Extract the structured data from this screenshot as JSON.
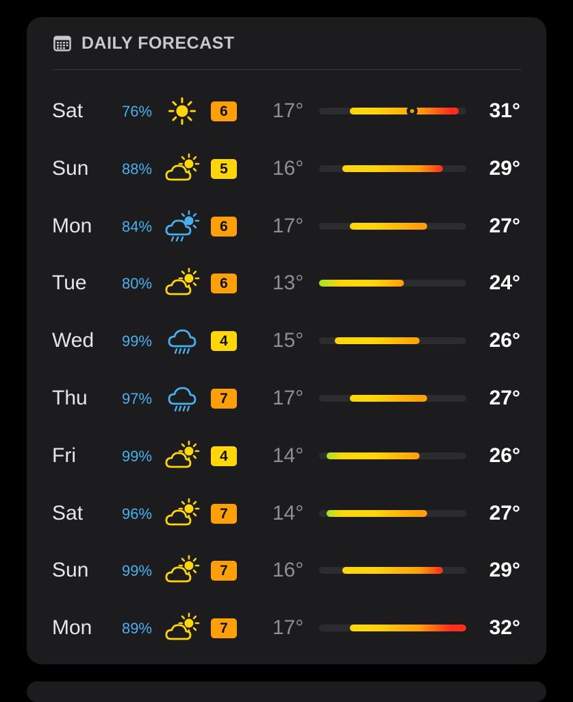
{
  "header": {
    "title": "DAILY FORECAST",
    "icon": "calendar-icon"
  },
  "colors": {
    "precip": "#48b0ef",
    "uv_moderate": "#ffd60a",
    "uv_high": "#ff9f0a",
    "temp_cool": "#a8e02a",
    "temp_mild": "#ffd60a",
    "temp_warm": "#ff9f0a",
    "temp_hot": "#ff2d1a"
  },
  "range_scale": {
    "min": 13,
    "max": 32
  },
  "days": [
    {
      "day": "Sat",
      "precip": "76%",
      "icon": "sun-icon",
      "uv": "6",
      "low": "17°",
      "high": "31°",
      "low_val": 17,
      "high_val": 31,
      "current_val": 25
    },
    {
      "day": "Sun",
      "precip": "88%",
      "icon": "partly-cloudy-icon",
      "uv": "5",
      "low": "16°",
      "high": "29°",
      "low_val": 16,
      "high_val": 29
    },
    {
      "day": "Mon",
      "precip": "84%",
      "icon": "partly-cloudy-rain-icon",
      "uv": "6",
      "low": "17°",
      "high": "27°",
      "low_val": 17,
      "high_val": 27
    },
    {
      "day": "Tue",
      "precip": "80%",
      "icon": "partly-cloudy-icon",
      "uv": "6",
      "low": "13°",
      "high": "24°",
      "low_val": 13,
      "high_val": 24
    },
    {
      "day": "Wed",
      "precip": "99%",
      "icon": "rain-icon",
      "uv": "4",
      "low": "15°",
      "high": "26°",
      "low_val": 15,
      "high_val": 26
    },
    {
      "day": "Thu",
      "precip": "97%",
      "icon": "rain-icon",
      "uv": "7",
      "low": "17°",
      "high": "27°",
      "low_val": 17,
      "high_val": 27
    },
    {
      "day": "Fri",
      "precip": "99%",
      "icon": "partly-cloudy-icon",
      "uv": "4",
      "low": "14°",
      "high": "26°",
      "low_val": 14,
      "high_val": 26
    },
    {
      "day": "Sat",
      "precip": "96%",
      "icon": "partly-cloudy-icon",
      "uv": "7",
      "low": "14°",
      "high": "27°",
      "low_val": 14,
      "high_val": 27
    },
    {
      "day": "Sun",
      "precip": "99%",
      "icon": "partly-cloudy-icon",
      "uv": "7",
      "low": "16°",
      "high": "29°",
      "low_val": 16,
      "high_val": 29
    },
    {
      "day": "Mon",
      "precip": "89%",
      "icon": "partly-cloudy-icon",
      "uv": "7",
      "low": "17°",
      "high": "32°",
      "low_val": 17,
      "high_val": 32
    }
  ]
}
